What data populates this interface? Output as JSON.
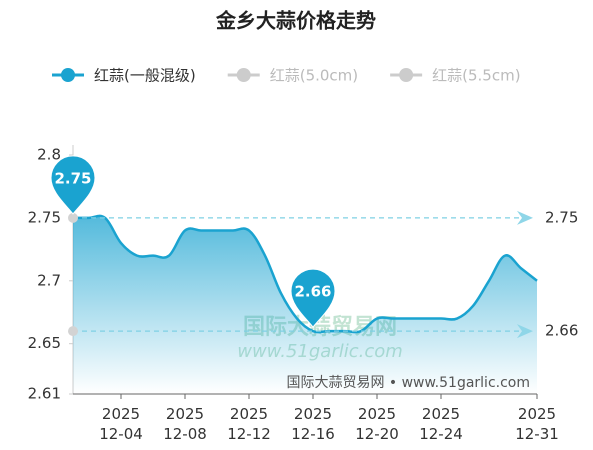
{
  "chart_data": {
    "type": "line",
    "title": "金乡大蒜价格走势",
    "series": [
      {
        "name": "红蒜(一般混级)",
        "color": "#1aa3d0",
        "visible": true,
        "values": [
          2.75,
          2.75,
          2.75,
          2.73,
          2.72,
          2.72,
          2.72,
          2.74,
          2.74,
          2.74,
          2.74,
          2.74,
          2.72,
          2.69,
          2.67,
          2.66,
          2.66,
          2.66,
          2.66,
          2.67,
          2.67,
          2.67,
          2.67,
          2.67,
          2.67,
          2.68,
          2.7,
          2.72,
          2.71,
          2.7
        ]
      },
      {
        "name": "红蒜(5.0cm)",
        "color": "#cccccc",
        "visible": false
      },
      {
        "name": "红蒜(5.5cm)",
        "color": "#cccccc",
        "visible": false
      }
    ],
    "categories": [
      null,
      null,
      null,
      "2025\n12-04",
      null,
      null,
      null,
      "2025\n12-08",
      null,
      null,
      null,
      "2025\n12-12",
      null,
      null,
      null,
      "2025\n12-16",
      null,
      null,
      null,
      "2025\n12-20",
      null,
      null,
      null,
      "2025\n12-24",
      null,
      null,
      null,
      null,
      null,
      "2025\n12-31"
    ],
    "ylim": [
      2.61,
      2.8
    ],
    "yticks": [
      2.61,
      2.65,
      2.7,
      2.75,
      2.8
    ],
    "mark_points": [
      2.75,
      2.66
    ],
    "mark_lines": [
      2.75,
      2.66
    ],
    "watermark": [
      "国际大蒜贸易网",
      "www.51garlic.com"
    ],
    "source": "国际大蒜贸易网 • www.51garlic.com"
  }
}
